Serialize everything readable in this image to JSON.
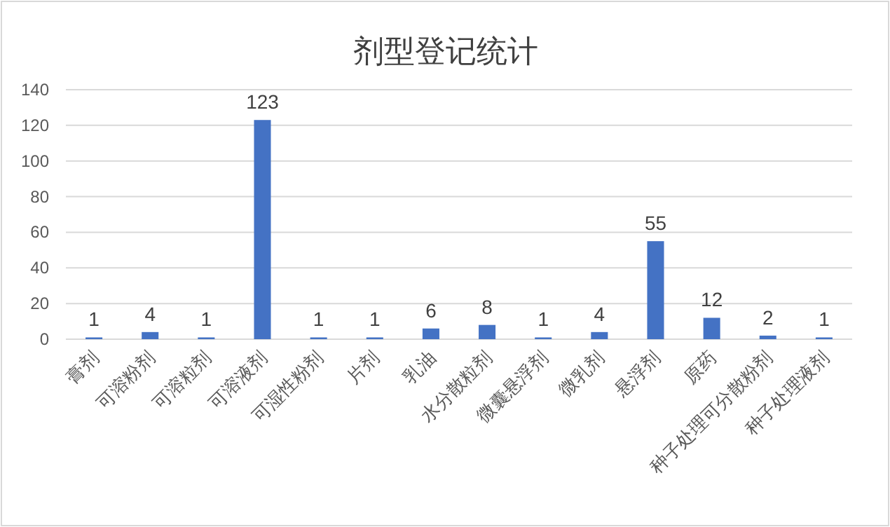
{
  "chart_data": {
    "type": "bar",
    "title": "剂型登记统计",
    "categories": [
      "膏剂",
      "可溶粉剂",
      "可溶粒剂",
      "可溶液剂",
      "可湿性粉剂",
      "片剂",
      "乳油",
      "水分散粒剂",
      "微囊悬浮剂",
      "微乳剂",
      "悬浮剂",
      "原药",
      "种子处理可分散粉剂",
      "种子处理液剂"
    ],
    "values": [
      1,
      4,
      1,
      123,
      1,
      1,
      6,
      8,
      1,
      4,
      55,
      12,
      2,
      1
    ],
    "color": "#4472c4",
    "ylim": [
      0,
      140
    ],
    "yticks": [
      0,
      20,
      40,
      60,
      80,
      100,
      120,
      140
    ],
    "grid": "y",
    "data_labels": true
  }
}
